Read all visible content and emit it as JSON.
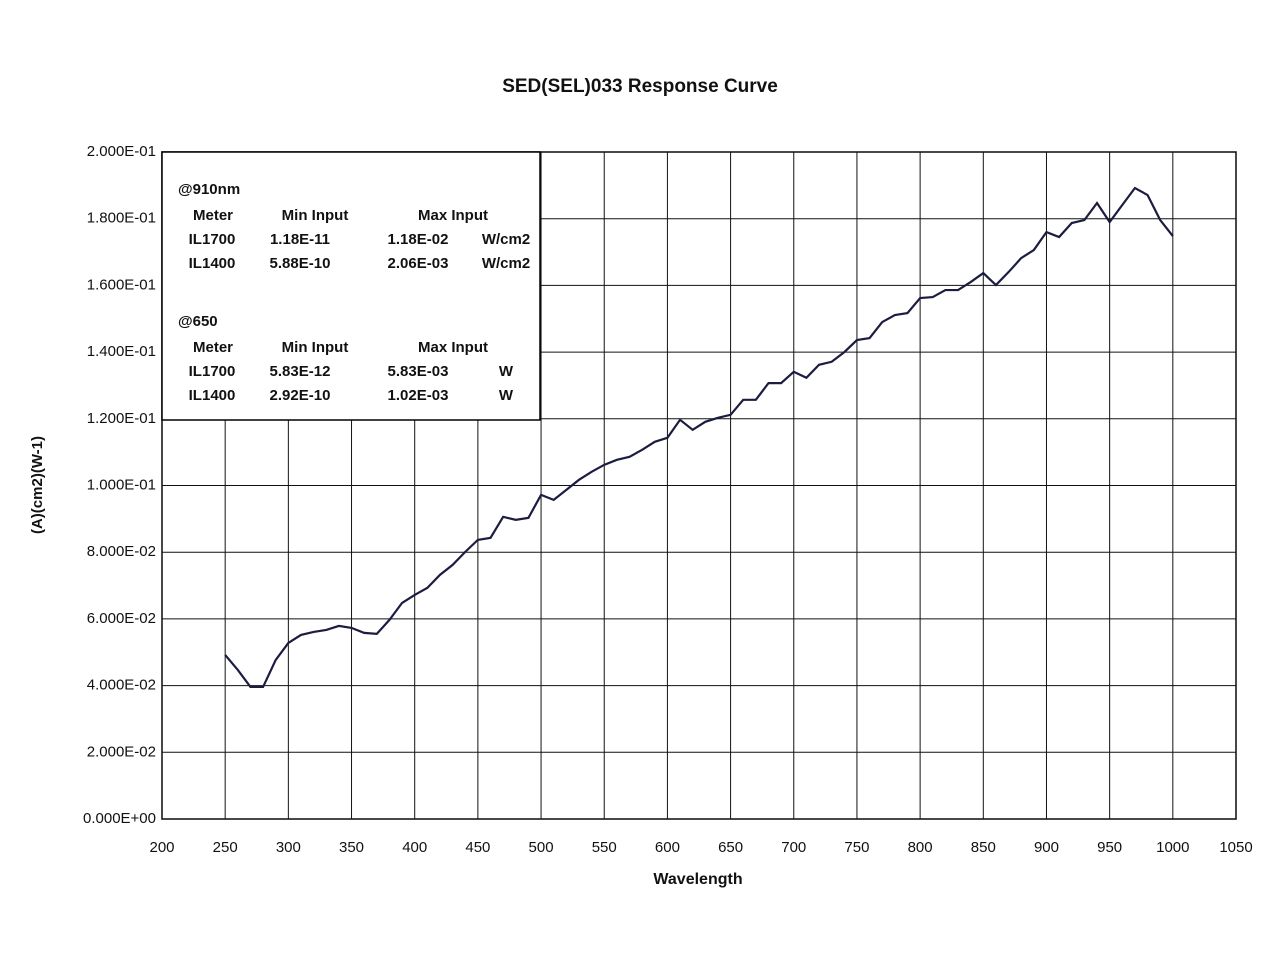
{
  "chart_data": {
    "type": "line",
    "title": "SED(SEL)033 Response Curve",
    "xlabel": "Wavelength",
    "ylabel": "(A)(cm2)(W-1)",
    "xlim": [
      200,
      1050
    ],
    "xticks": [
      200,
      250,
      300,
      350,
      400,
      450,
      500,
      550,
      600,
      650,
      700,
      750,
      800,
      850,
      900,
      950,
      1000,
      1050
    ],
    "ylim": [
      0,
      0.2
    ],
    "yticks": [
      {
        "value": 0,
        "label": "0.000E+00"
      },
      {
        "value": 0.02,
        "label": "2.000E-02"
      },
      {
        "value": 0.04,
        "label": "4.000E-02"
      },
      {
        "value": 0.06,
        "label": "6.000E-02"
      },
      {
        "value": 0.08,
        "label": "8.000E-02"
      },
      {
        "value": 0.1,
        "label": "1.000E-01"
      },
      {
        "value": 0.12,
        "label": "1.200E-01"
      },
      {
        "value": 0.14,
        "label": "1.400E-01"
      },
      {
        "value": 0.16,
        "label": "1.600E-01"
      },
      {
        "value": 0.18,
        "label": "1.800E-01"
      },
      {
        "value": 0.2,
        "label": "2.000E-01"
      }
    ],
    "grid": true,
    "x": [
      250,
      260,
      270,
      280,
      290,
      300,
      310,
      320,
      330,
      340,
      350,
      360,
      370,
      380,
      390,
      400,
      410,
      420,
      430,
      440,
      450,
      460,
      470,
      480,
      490,
      500,
      510,
      520,
      530,
      540,
      550,
      560,
      570,
      580,
      590,
      600,
      610,
      620,
      630,
      640,
      650,
      660,
      670,
      680,
      690,
      700,
      710,
      720,
      730,
      740,
      750,
      760,
      770,
      780,
      790,
      800,
      810,
      820,
      830,
      840,
      850,
      860,
      870,
      880,
      890,
      900,
      910,
      920,
      930,
      940,
      950,
      960,
      970,
      980,
      990,
      1000
    ],
    "series": [
      {
        "color": "#1c1c40",
        "values": [
          0.0492,
          0.0447,
          0.0396,
          0.0396,
          0.0477,
          0.0528,
          0.0552,
          0.0561,
          0.0567,
          0.0579,
          0.0573,
          0.0558,
          0.0555,
          0.0597,
          0.0648,
          0.0672,
          0.0693,
          0.0732,
          0.0762,
          0.0801,
          0.0837,
          0.0843,
          0.0906,
          0.0897,
          0.0903,
          0.0972,
          0.0957,
          0.0987,
          0.1017,
          0.1041,
          0.1062,
          0.1077,
          0.1086,
          0.1107,
          0.1131,
          0.1143,
          0.1197,
          0.1167,
          0.1191,
          0.1203,
          0.1212,
          0.1257,
          0.1257,
          0.1307,
          0.1307,
          0.1341,
          0.1323,
          0.1362,
          0.1371,
          0.14,
          0.1436,
          0.1442,
          0.149,
          0.1511,
          0.1517,
          0.1562,
          0.1565,
          0.1586,
          0.1586,
          0.161,
          0.1637,
          0.1601,
          0.164,
          0.1682,
          0.1706,
          0.176,
          0.1745,
          0.1787,
          0.1796,
          0.1847,
          0.179,
          0.1841,
          0.1892,
          0.1871,
          0.1796,
          0.1748
        ]
      }
    ],
    "annotations": [
      {
        "header": "@910nm",
        "columns": [
          "Meter",
          "Min Input",
          "Max Input"
        ],
        "rows": [
          [
            "IL1700",
            "1.18E-11",
            "1.18E-02",
            "W/cm2"
          ],
          [
            "IL1400",
            "5.88E-10",
            "2.06E-03",
            "W/cm2"
          ]
        ]
      },
      {
        "header": "@650",
        "columns": [
          "Meter",
          "Min Input",
          "Max Input"
        ],
        "rows": [
          [
            "IL1700",
            "5.83E-12",
            "5.83E-03",
            "W"
          ],
          [
            "IL1400",
            "2.92E-10",
            "1.02E-03",
            "W"
          ]
        ]
      }
    ]
  }
}
